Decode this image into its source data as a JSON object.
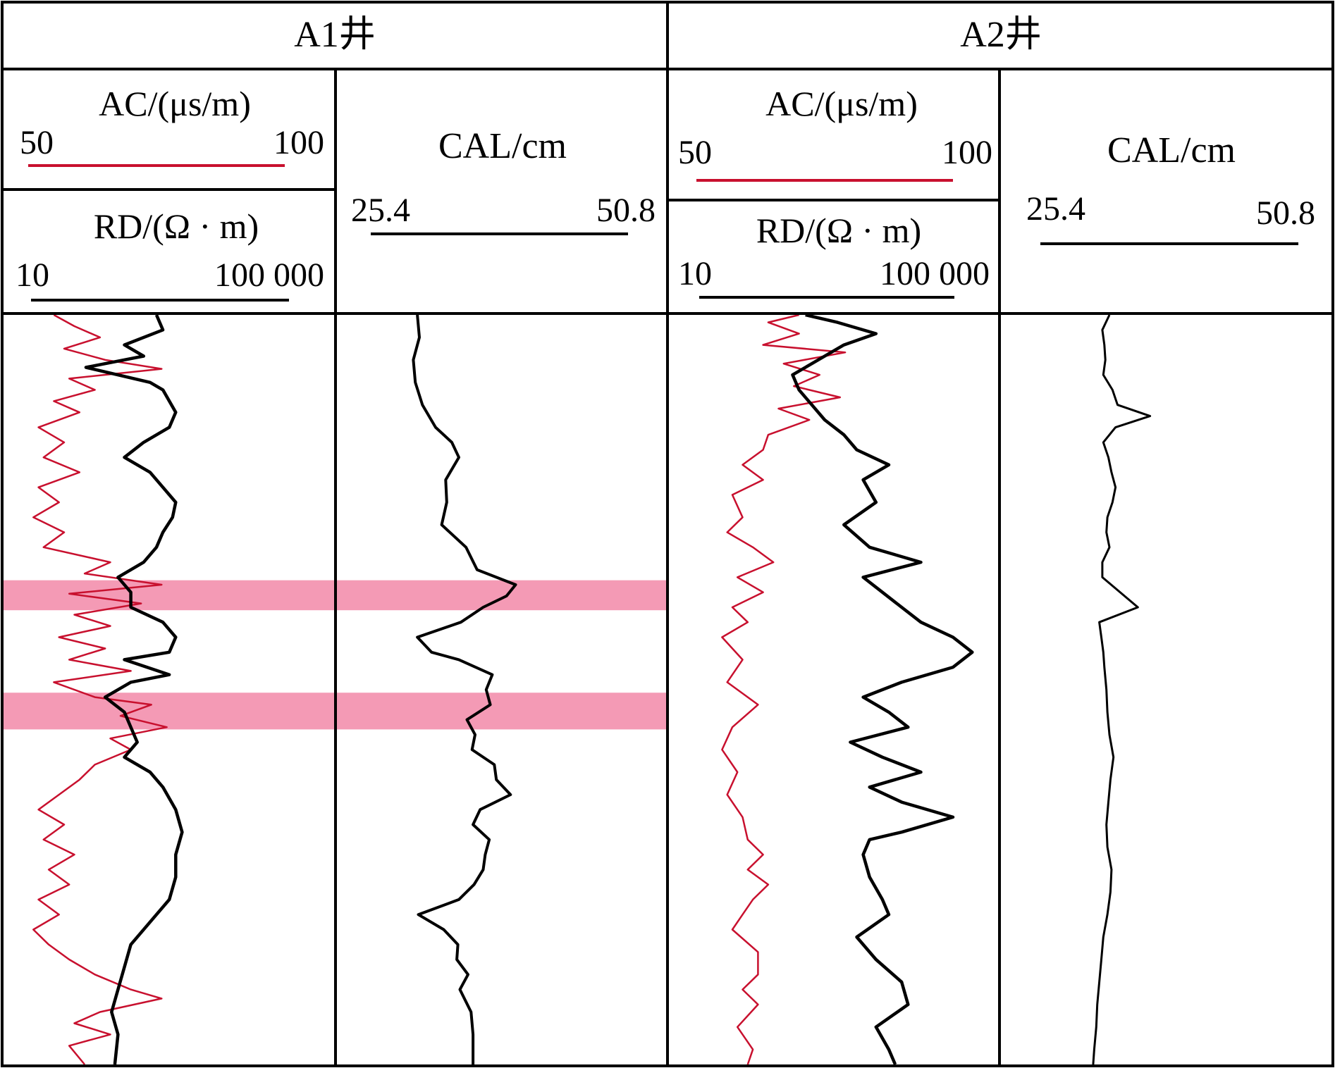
{
  "colors": {
    "ac": "#c8102e",
    "curve": "#000000",
    "highlight": "#f49ab5",
    "grid": "#000000"
  },
  "wells": [
    {
      "name": "A1井",
      "ac": {
        "label": "AC/(μs/m)",
        "min_label": "50",
        "max_label": "100"
      },
      "rd": {
        "label": "RD/(Ω · m)",
        "min_label": "10",
        "max_label": "100 000"
      },
      "cal": {
        "label": "CAL/cm",
        "min_label": "25.4",
        "max_label": "50.8"
      }
    },
    {
      "name": "A2井",
      "ac": {
        "label": "AC/(μs/m)",
        "min_label": "50",
        "max_label": "100"
      },
      "rd": {
        "label": "RD/(Ω · m)",
        "min_label": "10",
        "max_label": "100 000"
      },
      "cal": {
        "label": "CAL/cm",
        "min_label": "25.4",
        "max_label": "50.8"
      }
    }
  ],
  "chart_data": {
    "type": "line",
    "depth_range": [
      0,
      1
    ],
    "a1": {
      "highlight_intervals": [
        [
          0.354,
          0.394
        ],
        [
          0.504,
          0.553
        ]
      ],
      "ac": [
        [
          0,
          55
        ],
        [
          0.015,
          59
        ],
        [
          0.03,
          64
        ],
        [
          0.045,
          57
        ],
        [
          0.06,
          65
        ],
        [
          0.072,
          76
        ],
        [
          0.085,
          58
        ],
        [
          0.1,
          63
        ],
        [
          0.115,
          55
        ],
        [
          0.13,
          60
        ],
        [
          0.15,
          52
        ],
        [
          0.17,
          57
        ],
        [
          0.19,
          53
        ],
        [
          0.21,
          60
        ],
        [
          0.23,
          52
        ],
        [
          0.25,
          56
        ],
        [
          0.27,
          51
        ],
        [
          0.29,
          57
        ],
        [
          0.31,
          53
        ],
        [
          0.33,
          66
        ],
        [
          0.345,
          61
        ],
        [
          0.36,
          76
        ],
        [
          0.372,
          58
        ],
        [
          0.385,
          72
        ],
        [
          0.4,
          59
        ],
        [
          0.415,
          66
        ],
        [
          0.43,
          56
        ],
        [
          0.445,
          65
        ],
        [
          0.46,
          58
        ],
        [
          0.475,
          70
        ],
        [
          0.49,
          55
        ],
        [
          0.51,
          63
        ],
        [
          0.52,
          74
        ],
        [
          0.535,
          68
        ],
        [
          0.55,
          77
        ],
        [
          0.565,
          66
        ],
        [
          0.58,
          70
        ],
        [
          0.6,
          63
        ],
        [
          0.62,
          60
        ],
        [
          0.64,
          56
        ],
        [
          0.66,
          52
        ],
        [
          0.68,
          57
        ],
        [
          0.7,
          53
        ],
        [
          0.72,
          59
        ],
        [
          0.74,
          54
        ],
        [
          0.76,
          58
        ],
        [
          0.78,
          52
        ],
        [
          0.8,
          56
        ],
        [
          0.82,
          51
        ],
        [
          0.84,
          54
        ],
        [
          0.86,
          58
        ],
        [
          0.88,
          63
        ],
        [
          0.9,
          70
        ],
        [
          0.912,
          76
        ],
        [
          0.93,
          64
        ],
        [
          0.945,
          59
        ],
        [
          0.96,
          66
        ],
        [
          0.975,
          58
        ],
        [
          1,
          61
        ]
      ],
      "rd": [
        [
          0,
          3.0
        ],
        [
          0.02,
          3.1
        ],
        [
          0.04,
          2.5
        ],
        [
          0.055,
          2.8
        ],
        [
          0.07,
          1.9
        ],
        [
          0.09,
          2.9
        ],
        [
          0.1,
          3.1
        ],
        [
          0.13,
          3.3
        ],
        [
          0.15,
          3.2
        ],
        [
          0.17,
          2.8
        ],
        [
          0.19,
          2.5
        ],
        [
          0.21,
          2.9
        ],
        [
          0.23,
          3.1
        ],
        [
          0.25,
          3.3
        ],
        [
          0.27,
          3.25
        ],
        [
          0.29,
          3.1
        ],
        [
          0.31,
          3.0
        ],
        [
          0.33,
          2.8
        ],
        [
          0.35,
          2.4
        ],
        [
          0.37,
          2.6
        ],
        [
          0.39,
          2.6
        ],
        [
          0.41,
          3.1
        ],
        [
          0.43,
          3.3
        ],
        [
          0.45,
          3.2
        ],
        [
          0.46,
          2.5
        ],
        [
          0.48,
          3.2
        ],
        [
          0.49,
          2.6
        ],
        [
          0.51,
          2.2
        ],
        [
          0.53,
          2.5
        ],
        [
          0.55,
          2.6
        ],
        [
          0.57,
          2.7
        ],
        [
          0.59,
          2.5
        ],
        [
          0.61,
          2.9
        ],
        [
          0.63,
          3.1
        ],
        [
          0.66,
          3.3
        ],
        [
          0.69,
          3.4
        ],
        [
          0.72,
          3.3
        ],
        [
          0.75,
          3.3
        ],
        [
          0.78,
          3.2
        ],
        [
          0.81,
          2.9
        ],
        [
          0.84,
          2.6
        ],
        [
          0.87,
          2.5
        ],
        [
          0.9,
          2.4
        ],
        [
          0.93,
          2.3
        ],
        [
          0.96,
          2.4
        ],
        [
          1,
          2.35
        ]
      ],
      "cal": [
        [
          0,
          30.0
        ],
        [
          0.03,
          30.2
        ],
        [
          0.06,
          29.6
        ],
        [
          0.09,
          29.8
        ],
        [
          0.12,
          30.5
        ],
        [
          0.15,
          31.8
        ],
        [
          0.17,
          33.4
        ],
        [
          0.19,
          34.1
        ],
        [
          0.22,
          32.8
        ],
        [
          0.25,
          32.9
        ],
        [
          0.28,
          32.4
        ],
        [
          0.31,
          34.8
        ],
        [
          0.34,
          35.9
        ],
        [
          0.36,
          39.7
        ],
        [
          0.375,
          38.8
        ],
        [
          0.39,
          36.5
        ],
        [
          0.41,
          34.3
        ],
        [
          0.43,
          30.0
        ],
        [
          0.45,
          31.4
        ],
        [
          0.46,
          34.1
        ],
        [
          0.48,
          37.4
        ],
        [
          0.5,
          36.8
        ],
        [
          0.52,
          37.2
        ],
        [
          0.54,
          34.9
        ],
        [
          0.56,
          35.7
        ],
        [
          0.58,
          35.4
        ],
        [
          0.6,
          37.6
        ],
        [
          0.62,
          37.8
        ],
        [
          0.64,
          39.2
        ],
        [
          0.66,
          36.2
        ],
        [
          0.68,
          35.5
        ],
        [
          0.7,
          37.1
        ],
        [
          0.72,
          36.7
        ],
        [
          0.74,
          36.5
        ],
        [
          0.76,
          35.6
        ],
        [
          0.78,
          34.1
        ],
        [
          0.8,
          30.1
        ],
        [
          0.82,
          32.6
        ],
        [
          0.84,
          34.0
        ],
        [
          0.86,
          33.9
        ],
        [
          0.88,
          35.0
        ],
        [
          0.9,
          34.2
        ],
        [
          0.93,
          35.3
        ],
        [
          0.96,
          35.5
        ],
        [
          1,
          35.5
        ]
      ]
    },
    "a2": {
      "ac": [
        [
          0,
          70
        ],
        [
          0.01,
          64
        ],
        [
          0.025,
          70
        ],
        [
          0.04,
          63
        ],
        [
          0.05,
          79
        ],
        [
          0.065,
          67
        ],
        [
          0.08,
          74
        ],
        [
          0.095,
          69
        ],
        [
          0.11,
          78
        ],
        [
          0.125,
          66
        ],
        [
          0.14,
          72
        ],
        [
          0.16,
          64
        ],
        [
          0.18,
          63
        ],
        [
          0.2,
          59
        ],
        [
          0.22,
          63
        ],
        [
          0.24,
          57
        ],
        [
          0.27,
          59
        ],
        [
          0.29,
          56
        ],
        [
          0.31,
          61
        ],
        [
          0.33,
          65
        ],
        [
          0.35,
          58
        ],
        [
          0.37,
          63
        ],
        [
          0.39,
          57
        ],
        [
          0.41,
          60
        ],
        [
          0.43,
          55
        ],
        [
          0.46,
          59
        ],
        [
          0.49,
          56
        ],
        [
          0.52,
          62
        ],
        [
          0.55,
          57
        ],
        [
          0.58,
          55
        ],
        [
          0.61,
          58
        ],
        [
          0.64,
          56
        ],
        [
          0.67,
          59
        ],
        [
          0.7,
          60
        ],
        [
          0.72,
          63
        ],
        [
          0.74,
          60
        ],
        [
          0.76,
          64
        ],
        [
          0.78,
          61
        ],
        [
          0.8,
          59
        ],
        [
          0.82,
          57
        ],
        [
          0.85,
          62
        ],
        [
          0.88,
          62
        ],
        [
          0.9,
          59
        ],
        [
          0.92,
          62
        ],
        [
          0.95,
          58
        ],
        [
          0.98,
          61
        ],
        [
          1,
          60
        ]
      ],
      "rd": [
        [
          0,
          2.7
        ],
        [
          0.01,
          3.2
        ],
        [
          0.025,
          3.8
        ],
        [
          0.04,
          3.3
        ],
        [
          0.06,
          2.9
        ],
        [
          0.08,
          2.5
        ],
        [
          0.1,
          2.6
        ],
        [
          0.12,
          2.8
        ],
        [
          0.14,
          3.0
        ],
        [
          0.16,
          3.3
        ],
        [
          0.18,
          3.5
        ],
        [
          0.2,
          4.0
        ],
        [
          0.22,
          3.6
        ],
        [
          0.25,
          3.8
        ],
        [
          0.28,
          3.3
        ],
        [
          0.31,
          3.7
        ],
        [
          0.33,
          4.5
        ],
        [
          0.35,
          3.6
        ],
        [
          0.37,
          3.9
        ],
        [
          0.39,
          4.2
        ],
        [
          0.41,
          4.5
        ],
        [
          0.43,
          5.0
        ],
        [
          0.45,
          5.3
        ],
        [
          0.47,
          5.0
        ],
        [
          0.49,
          4.2
        ],
        [
          0.51,
          3.6
        ],
        [
          0.53,
          4.0
        ],
        [
          0.55,
          4.3
        ],
        [
          0.57,
          3.4
        ],
        [
          0.59,
          3.9
        ],
        [
          0.61,
          4.5
        ],
        [
          0.63,
          3.7
        ],
        [
          0.65,
          4.2
        ],
        [
          0.67,
          5.0
        ],
        [
          0.69,
          4.2
        ],
        [
          0.7,
          3.7
        ],
        [
          0.72,
          3.6
        ],
        [
          0.75,
          3.7
        ],
        [
          0.78,
          3.9
        ],
        [
          0.8,
          4.0
        ],
        [
          0.83,
          3.5
        ],
        [
          0.86,
          3.8
        ],
        [
          0.89,
          4.2
        ],
        [
          0.92,
          4.3
        ],
        [
          0.95,
          3.8
        ],
        [
          0.98,
          4.0
        ],
        [
          1,
          4.1
        ]
      ],
      "cal": [
        [
          0,
          32.2
        ],
        [
          0.02,
          31.5
        ],
        [
          0.04,
          31.7
        ],
        [
          0.06,
          31.8
        ],
        [
          0.08,
          31.6
        ],
        [
          0.1,
          32.5
        ],
        [
          0.12,
          33.0
        ],
        [
          0.135,
          36.2
        ],
        [
          0.15,
          32.8
        ],
        [
          0.17,
          31.6
        ],
        [
          0.19,
          32.1
        ],
        [
          0.21,
          32.4
        ],
        [
          0.23,
          32.8
        ],
        [
          0.25,
          32.5
        ],
        [
          0.27,
          32.0
        ],
        [
          0.29,
          31.9
        ],
        [
          0.31,
          32.2
        ],
        [
          0.33,
          31.5
        ],
        [
          0.35,
          31.5
        ],
        [
          0.39,
          35.0
        ],
        [
          0.41,
          31.2
        ],
        [
          0.43,
          31.4
        ],
        [
          0.45,
          31.6
        ],
        [
          0.47,
          31.7
        ],
        [
          0.5,
          31.9
        ],
        [
          0.53,
          32.0
        ],
        [
          0.56,
          32.2
        ],
        [
          0.59,
          32.6
        ],
        [
          0.62,
          32.3
        ],
        [
          0.65,
          32.1
        ],
        [
          0.68,
          31.9
        ],
        [
          0.71,
          32.0
        ],
        [
          0.74,
          32.4
        ],
        [
          0.77,
          32.3
        ],
        [
          0.8,
          32.0
        ],
        [
          0.83,
          31.6
        ],
        [
          0.86,
          31.4
        ],
        [
          0.89,
          31.2
        ],
        [
          0.92,
          31.0
        ],
        [
          0.95,
          30.9
        ],
        [
          0.98,
          30.7
        ],
        [
          1,
          30.6
        ]
      ]
    }
  }
}
